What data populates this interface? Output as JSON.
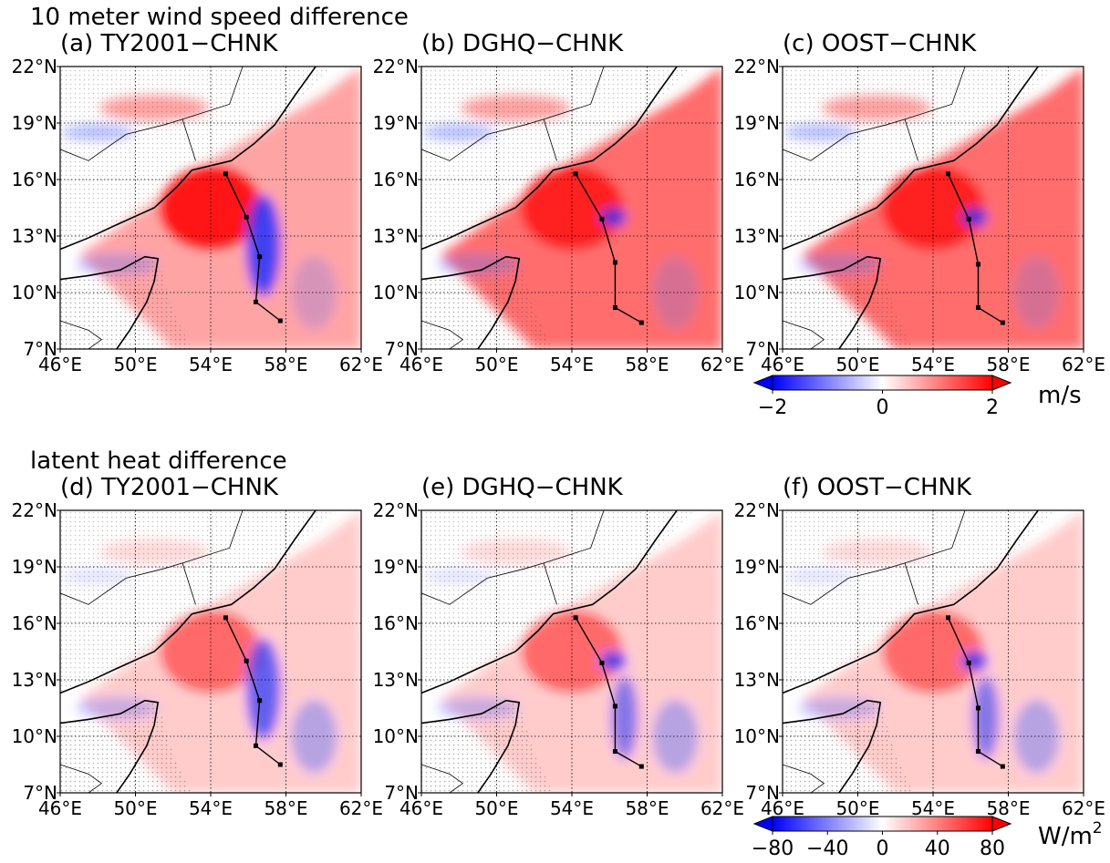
{
  "chart_data": {
    "type": "heatmap",
    "rows": [
      {
        "title": "10 meter wind speed difference",
        "panels": [
          {
            "title": "(a) TY2001−CHNK",
            "scheme": "TY2001"
          },
          {
            "title": "(b) DGHQ−CHNK",
            "scheme": "DGHQ"
          },
          {
            "title": "(c) OOST−CHNK",
            "scheme": "OOST"
          }
        ],
        "colorbar": {
          "ticks": [
            "−2",
            "0",
            "2"
          ],
          "vmin": -2,
          "vmax": 2,
          "unit": "m/s",
          "extend": "both"
        }
      },
      {
        "title": "latent heat difference",
        "panels": [
          {
            "title": "(d) TY2001−CHNK",
            "scheme": "TY2001"
          },
          {
            "title": "(e) DGHQ−CHNK",
            "scheme": "DGHQ"
          },
          {
            "title": "(f) OOST−CHNK",
            "scheme": "OOST"
          }
        ],
        "colorbar": {
          "ticks": [
            "−80",
            "−40",
            "0",
            "40",
            "80"
          ],
          "vmin": -80,
          "vmax": 80,
          "unit_base": "W/m",
          "unit_sup": "2",
          "extend": "both"
        }
      }
    ],
    "xlim": [
      46,
      62
    ],
    "ylim": [
      7,
      22
    ],
    "xticks": [
      "46°E",
      "50°E",
      "54°E",
      "58°E",
      "62°E"
    ],
    "yticks": [
      "7°N",
      "10°N",
      "13°N",
      "16°N",
      "19°N",
      "22°N"
    ],
    "xtick_values": [
      46,
      50,
      54,
      58,
      62
    ],
    "ytick_values": [
      7,
      10,
      13,
      16,
      19,
      22
    ],
    "grid": true,
    "colormap": "bwr",
    "colors": {
      "negative": "#0000ff",
      "neutral": "#ffffff",
      "positive": "#ff0000"
    },
    "track": {
      "TY2001": [
        [
          54.8,
          16.3
        ],
        [
          55.9,
          14.0
        ],
        [
          56.6,
          11.9
        ],
        [
          56.4,
          9.5
        ],
        [
          57.7,
          8.5
        ]
      ],
      "DGHQ": [
        [
          54.2,
          16.3
        ],
        [
          55.6,
          13.9
        ],
        [
          56.3,
          11.6
        ],
        [
          56.3,
          9.2
        ],
        [
          57.7,
          8.4
        ]
      ],
      "OOST": [
        [
          54.8,
          16.3
        ],
        [
          55.9,
          13.9
        ],
        [
          56.4,
          11.5
        ],
        [
          56.4,
          9.2
        ],
        [
          57.7,
          8.4
        ]
      ]
    }
  }
}
